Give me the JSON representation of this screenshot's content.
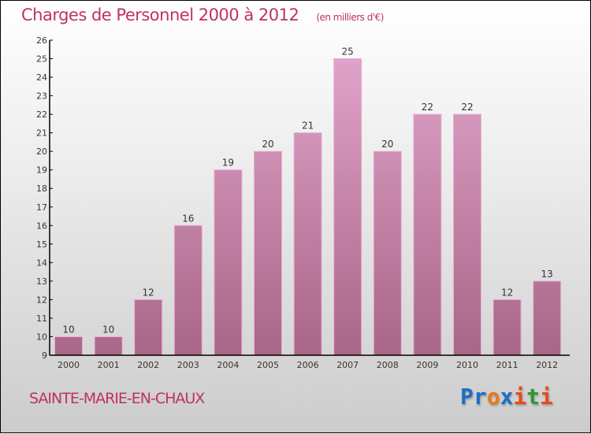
{
  "title": "Charges de Personnel 2000 à 2012",
  "unit": "(en milliers d'€)",
  "commune": "SAINTE-MARIE-EN-CHAUX",
  "logo": {
    "text": "Proxiti",
    "colors": [
      "#1a6fc4",
      "#1a6fc4",
      "#e87a1a",
      "#1a6fc4",
      "#e84a1a",
      "#2a9a2a",
      "#e84a1a"
    ]
  },
  "colors": {
    "bar_top": "#e3a6cc",
    "bar_bottom": "#a86688",
    "title": "#c0306a"
  },
  "chart_data": {
    "type": "bar",
    "title": "Charges de Personnel 2000 à 2012",
    "ylabel": "en milliers d'€",
    "categories": [
      "2000",
      "2001",
      "2002",
      "2003",
      "2004",
      "2005",
      "2006",
      "2007",
      "2008",
      "2009",
      "2010",
      "2011",
      "2012"
    ],
    "values": [
      10,
      10,
      12,
      16,
      19,
      20,
      21,
      25,
      20,
      22,
      22,
      12,
      13
    ],
    "ylim": [
      9,
      26
    ],
    "yticks": [
      9,
      10,
      11,
      12,
      13,
      14,
      15,
      16,
      17,
      18,
      19,
      20,
      21,
      22,
      23,
      24,
      25,
      26
    ],
    "grid": false
  }
}
